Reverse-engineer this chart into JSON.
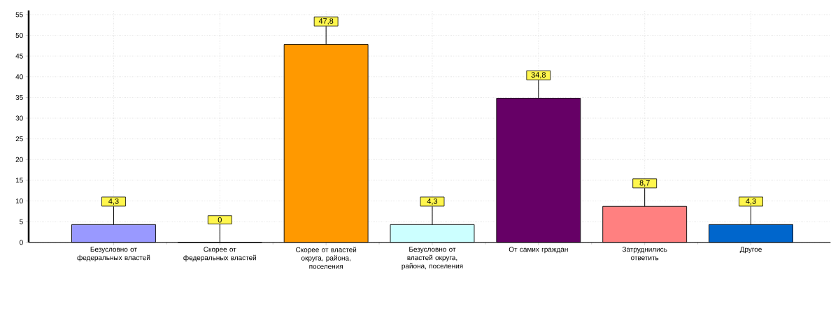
{
  "chart_data": {
    "type": "bar",
    "categories": [
      "Безусловно от федеральных властей",
      "Скорее от федеральных властей",
      "Скорее от властей округа, района, поселения",
      "Безусловно от властей округа, района, поселения",
      "От самих граждан",
      "Затруднились ответить",
      "Другое"
    ],
    "values": [
      4.3,
      0,
      47.8,
      4.3,
      34.8,
      8.7,
      4.3
    ],
    "value_labels": [
      "4,3",
      "0",
      "47,8",
      "4,3",
      "34,8",
      "8,7",
      "4,3"
    ],
    "colors": [
      "#9999ff",
      "#cc3366",
      "#ff9900",
      "#ccffff",
      "#660066",
      "#ff8080",
      "#0066cc"
    ],
    "ylim": [
      0,
      56
    ],
    "yticks": [
      0,
      5,
      10,
      15,
      20,
      25,
      30,
      35,
      40,
      45,
      50,
      55
    ],
    "grid": true
  }
}
